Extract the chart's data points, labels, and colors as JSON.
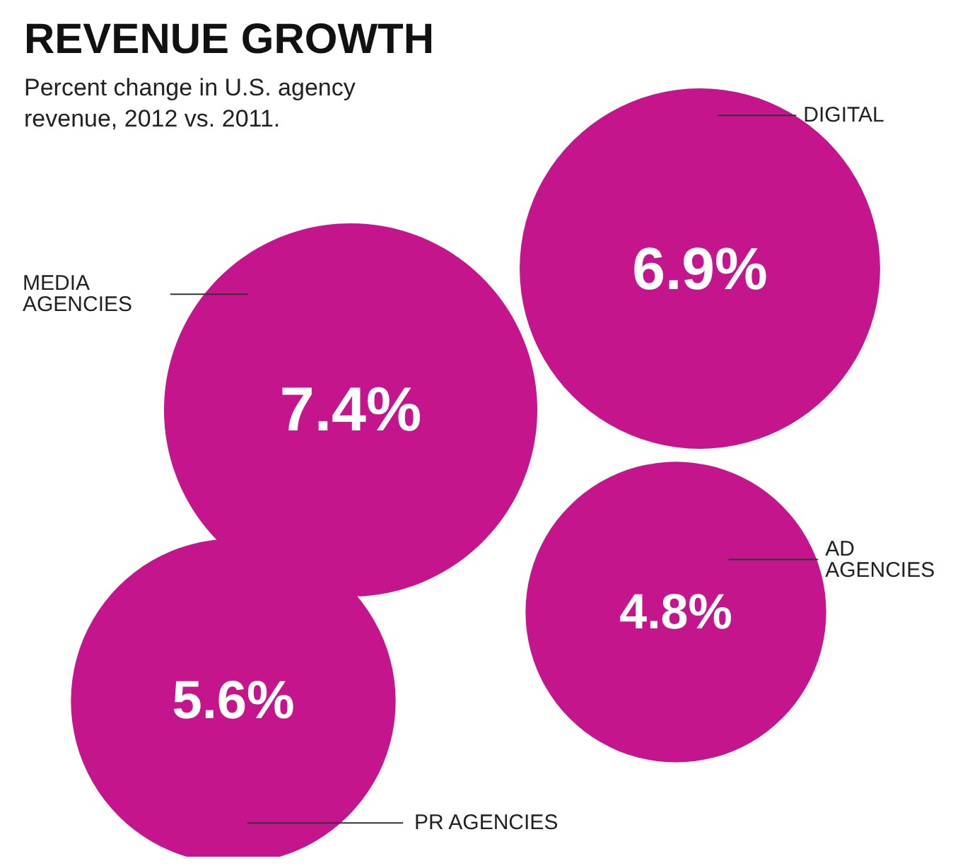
{
  "chart_data": {
    "type": "other",
    "title": "REVENUE GROWTH",
    "subtitle": "Percent change in U.S. agency revenue, 2012 vs. 2011.",
    "categories": [
      "MEDIA\nAGENCIES",
      "DIGITAL",
      "AD\nAGENCIES",
      "PR AGENCIES"
    ],
    "values": [
      7.4,
      6.9,
      4.8,
      5.6
    ],
    "value_labels": [
      "7.4%",
      "6.9%",
      "4.8%",
      "5.6%"
    ],
    "colors": [
      "#c4158c",
      "#c4158c",
      "#c4158c",
      "#c4158c"
    ]
  }
}
